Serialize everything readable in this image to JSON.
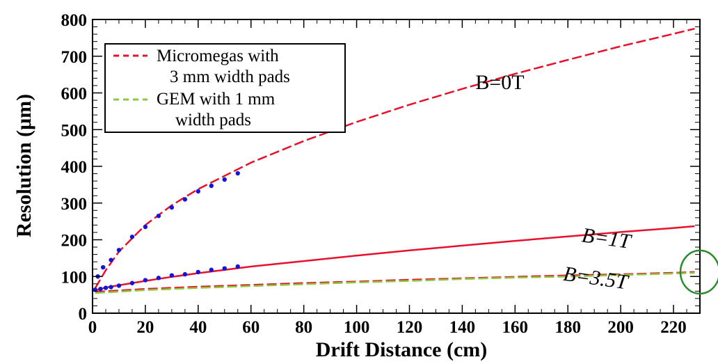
{
  "chart_data": {
    "type": "line",
    "xlabel": "Drift Distance (cm)",
    "ylabel": "Resolution (μm)",
    "xlim": [
      0,
      230
    ],
    "ylim": [
      0,
      800
    ],
    "x_ticks": [
      "0",
      "20",
      "40",
      "60",
      "80",
      "100",
      "120",
      "140",
      "160",
      "180",
      "200",
      "220"
    ],
    "y_ticks": [
      "0",
      "100",
      "200",
      "300",
      "400",
      "500",
      "600",
      "700",
      "800"
    ],
    "grid": false,
    "legend_position": "top-left",
    "legend": [
      {
        "line1": "Micromegas  with",
        "line2": "3 mm width pads",
        "color": "#e8102a",
        "style": "dashed"
      },
      {
        "line1": "GEM with 1 mm",
        "line2": "width pads",
        "color": "#8cc83c",
        "style": "dashed"
      }
    ],
    "annotations": [
      {
        "text": "B=0T",
        "x": 145,
        "y": 610,
        "italic": false
      },
      {
        "text": "B=1T",
        "x": 185,
        "y": 195,
        "italic": true
      },
      {
        "text": "B=3.5T",
        "x": 178,
        "y": 90,
        "italic": true
      }
    ],
    "series": [
      {
        "style": "dashed",
        "color": "#e8102a",
        "x": [
          1,
          5,
          10,
          20,
          30,
          40,
          60,
          80,
          100,
          120,
          140,
          160,
          180,
          200,
          220,
          228
        ],
        "y": [
          68,
          117,
          168,
          240,
          294,
          338,
          410,
          469,
          521,
          568,
          611,
          652,
          690,
          727,
          761,
          775
        ]
      },
      {
        "style": "solid",
        "color": "#e8102a",
        "x": [
          1,
          5,
          10,
          20,
          30,
          40,
          60,
          80,
          100,
          120,
          140,
          160,
          180,
          200,
          220,
          228
        ],
        "y": [
          62,
          70,
          76,
          88,
          99,
          109,
          127,
          142,
          157,
          171,
          184,
          197,
          209,
          221,
          232,
          237
        ]
      },
      {
        "style": "dashed",
        "color": "#e8102a",
        "x": [
          1,
          20,
          40,
          60,
          80,
          100,
          120,
          140,
          160,
          180,
          200,
          220,
          228
        ],
        "y": [
          58,
          66,
          72,
          77,
          82,
          86,
          91,
          95,
          99,
          103,
          106,
          110,
          112
        ]
      },
      {
        "style": "dashed",
        "color": "#8cc83c",
        "x": [
          1,
          20,
          40,
          60,
          80,
          100,
          120,
          140,
          160,
          180,
          200,
          220,
          228
        ],
        "y": [
          55,
          63,
          69,
          74,
          79,
          84,
          88,
          93,
          97,
          100,
          104,
          108,
          110
        ]
      },
      {
        "style": "points",
        "color": "#1515d8",
        "x": [
          2,
          4,
          7,
          10,
          15,
          20,
          25,
          30,
          35,
          40,
          45,
          50,
          55
        ],
        "y": [
          100,
          125,
          145,
          172,
          208,
          235,
          265,
          288,
          310,
          332,
          347,
          364,
          381
        ]
      },
      {
        "style": "points",
        "color": "#1515d8",
        "x": [
          1,
          3,
          5,
          7,
          10,
          15,
          20,
          25,
          30,
          35,
          40,
          45,
          50,
          55
        ],
        "y": [
          64,
          66,
          69,
          71,
          75,
          82,
          90,
          96,
          103,
          106,
          112,
          118,
          122,
          127
        ]
      }
    ]
  },
  "colors": {
    "highlight_circle": "#2a8a2a"
  },
  "highlight": {
    "x": 230,
    "y": 112
  }
}
